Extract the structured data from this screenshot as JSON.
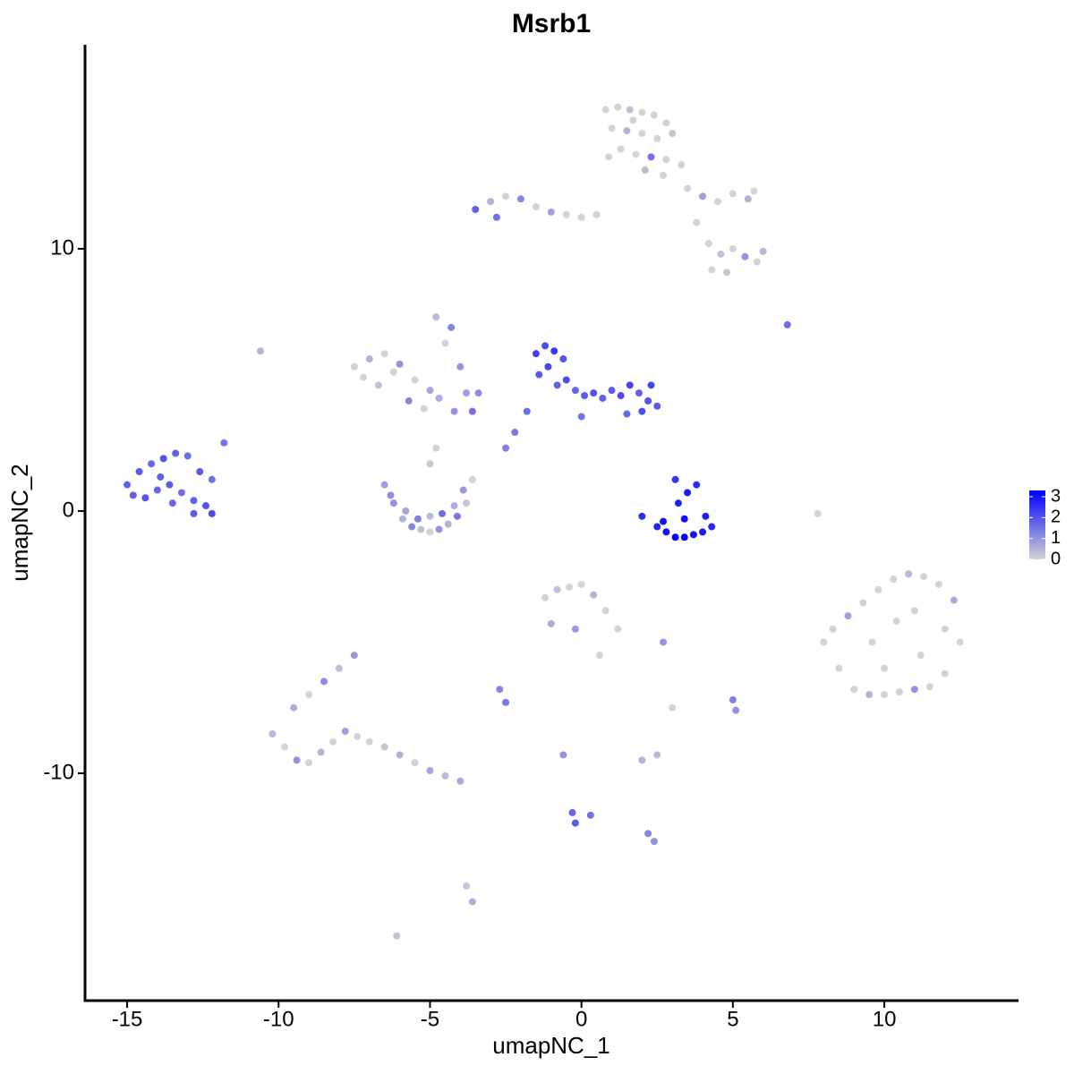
{
  "chart_data": {
    "type": "scatter",
    "title": "Msrb1",
    "xlabel": "umapNC_1",
    "ylabel": "umapNC_2",
    "xlim": [
      -16.39,
      14.43
    ],
    "ylim": [
      -18.67,
      17.78
    ],
    "xticks": [
      -15,
      -10,
      -5,
      0,
      5,
      10
    ],
    "yticks": [
      -10,
      0,
      10
    ],
    "color_scale": {
      "low": "#d3d3d3",
      "high": "#0000ff",
      "lim": [
        0,
        3.3
      ],
      "ticks": [
        0,
        1,
        2,
        3
      ]
    },
    "x": [
      -15,
      -14.6,
      -14.2,
      -13.8,
      -13.4,
      -13,
      -12.6,
      -12.2,
      -14.8,
      -14.4,
      -14,
      -13.6,
      -13.2,
      -12.8,
      -12.4,
      -13.5,
      -12.8,
      -12.2,
      -11.8,
      -13.9,
      0.8,
      1.2,
      1.6,
      2,
      2.4,
      2.8,
      1,
      1.5,
      2,
      2.5,
      3,
      1.3,
      1.8,
      2.3,
      2.8,
      3.3,
      0.9,
      2.1,
      2.7,
      1.7,
      3.5,
      4,
      4.5,
      5,
      5.5,
      5.7,
      4.2,
      4.6,
      5,
      5.4,
      5.8,
      6,
      4.3,
      4.8,
      3.8,
      -3.5,
      -3,
      -2.5,
      -2,
      -1.5,
      -1,
      -0.5,
      0,
      0.5,
      -2.8,
      -7.5,
      -7,
      -6.5,
      -6,
      -5.5,
      -5,
      -7.2,
      -6.7,
      -6.2,
      -5.7,
      -5.2,
      -4.7,
      -4.2,
      -4.8,
      -4.5,
      -4.3,
      -4,
      -3.8,
      -3.6,
      -3.4,
      -6.5,
      -6.2,
      -5.9,
      -5.6,
      -5.3,
      -5,
      -4.7,
      -4.4,
      -4.1,
      -3.8,
      -3.6,
      -6.3,
      -5.8,
      -5.4,
      -5,
      -4.6,
      -4.2,
      -3.9,
      -5,
      -4.8,
      -1.5,
      -1.2,
      -0.9,
      -0.6,
      -1.4,
      -1.1,
      -0.8,
      -0.5,
      -0.2,
      0.1,
      0.4,
      0.7,
      1,
      1.3,
      1.6,
      1.9,
      2.2,
      2.5,
      1.5,
      2,
      -1.8,
      -2.2,
      -2.5,
      0,
      2.3,
      2,
      2.5,
      2.8,
      3.1,
      3.4,
      3.7,
      4,
      4.3,
      3.2,
      3.5,
      3.8,
      3.1,
      3.4,
      2.7,
      4.1,
      8,
      8.5,
      9,
      9.5,
      10,
      10.5,
      11,
      11.5,
      12,
      12.5,
      8.3,
      8.8,
      9.3,
      9.8,
      10.3,
      10.8,
      11.3,
      11.8,
      12.3,
      9.6,
      10.4,
      11.2,
      12,
      10,
      11,
      -10.2,
      -9.8,
      -9.4,
      -9,
      -8.6,
      -8.2,
      -7.8,
      -7.4,
      -7,
      -9.5,
      -9,
      -8.5,
      -8,
      -7.5,
      -6.5,
      -6,
      -5.5,
      -5,
      -4.5,
      -4,
      -1.2,
      -0.8,
      -0.4,
      0,
      0.4,
      0.8,
      1.2,
      -1,
      -0.2,
      0.6,
      -2.7,
      -2.5,
      2.7,
      3,
      5,
      5.1,
      2,
      2.5,
      -0.6,
      -0.3,
      -0.2,
      0.3,
      2.2,
      2.4,
      -3.8,
      -3.6,
      -6.1,
      6.8,
      7.8,
      -10.6
    ],
    "values": [
      1,
      1.5,
      1.8,
      2,
      2.2,
      2.1,
      1.5,
      1.2,
      0.6,
      0.5,
      0.8,
      1,
      0.7,
      0.4,
      0.2,
      0.3,
      -0.1,
      -0.1,
      2.6,
      1.3,
      15.3,
      15.4,
      15.3,
      15.2,
      15.1,
      14.8,
      14.6,
      14.5,
      14.4,
      14.2,
      14.4,
      13.8,
      13.6,
      13.5,
      13.4,
      13.2,
      13.5,
      13,
      12.8,
      14.9,
      12.3,
      12,
      11.8,
      12.1,
      11.9,
      12.2,
      10.2,
      9.8,
      10,
      9.7,
      9.5,
      9.9,
      9.2,
      9.1,
      11,
      11.5,
      11.8,
      12,
      11.9,
      11.6,
      11.4,
      11.3,
      11.2,
      11.3,
      11.2,
      5.5,
      5.8,
      6,
      5.6,
      5,
      4.6,
      5.1,
      4.8,
      5.3,
      4.2,
      3.9,
      4.3,
      3.8,
      7.4,
      6.4,
      7,
      5.5,
      4.5,
      3.8,
      4.5,
      1,
      0.3,
      -0.3,
      -0.6,
      -0.7,
      -0.8,
      -0.7,
      -0.5,
      -0.2,
      0.3,
      1.2,
      0.6,
      0,
      -0.3,
      -0.2,
      -0.1,
      0.2,
      0.8,
      1.8,
      2.4,
      6,
      6.3,
      6.1,
      5.8,
      5.2,
      5.5,
      4.8,
      5,
      4.6,
      4.4,
      4.5,
      4.3,
      4.6,
      4.4,
      4.8,
      4.5,
      4.2,
      4,
      3.7,
      3.8,
      3.8,
      3,
      2.4,
      3.6,
      4.8,
      -0.2,
      -0.6,
      -0.8,
      -1,
      -1,
      -0.9,
      -0.8,
      -0.6,
      0.3,
      0.7,
      1,
      1.2,
      -0.3,
      -0.4,
      -0.2,
      -5,
      -6,
      -6.8,
      -7,
      -7,
      -6.9,
      -6.8,
      -6.7,
      -6.2,
      -5,
      -4.5,
      -4,
      -3.5,
      -3,
      -2.6,
      -2.4,
      -2.5,
      -2.8,
      -3.4,
      -5,
      -4.2,
      -5.5,
      -4.5,
      -6,
      -3.8,
      -8.5,
      -9,
      -9.5,
      -9.6,
      -9.2,
      -8.8,
      -8.4,
      -8.6,
      -8.8,
      -7.5,
      -7,
      -6.5,
      -6,
      -5.5,
      -9,
      -9.3,
      -9.6,
      -9.9,
      -10.1,
      -10.3,
      -3.3,
      -3,
      -2.9,
      -2.8,
      -3.2,
      -3.8,
      -4.5,
      -4.3,
      -4.5,
      -5.5,
      -6.8,
      -7.3,
      -5,
      -7.5,
      -7.2,
      -7.6,
      -9.5,
      -9.3,
      -9.3,
      -11.5,
      -11.9,
      -11.6,
      -12.3,
      -12.6,
      -14.3,
      -14.9,
      -16.2,
      7.1,
      -0.1,
      6.1
    ],
    "expression": [
      1.8,
      1.9,
      1.7,
      2,
      1.8,
      1.6,
      1.9,
      1.5,
      1.8,
      2,
      1.7,
      1.9,
      1.6,
      1.8,
      2,
      1.7,
      1.9,
      2.1,
      1.5,
      1.8,
      0,
      0,
      0.3,
      0,
      0,
      0,
      0,
      0.5,
      0,
      0,
      0.2,
      0,
      0,
      1.5,
      0,
      0,
      0,
      0.4,
      0,
      0,
      0,
      0.8,
      0,
      0,
      0.5,
      0,
      0,
      0.3,
      0,
      1,
      0,
      0.4,
      0,
      0.2,
      0,
      1.8,
      0.5,
      0,
      1.2,
      0,
      0.8,
      0,
      0,
      0,
      1.5,
      0,
      0.5,
      0,
      1,
      0,
      0.7,
      0,
      0.3,
      0,
      1.2,
      0,
      0.6,
      1,
      0.4,
      0,
      1.2,
      1,
      0.8,
      1.5,
      1.1,
      0.8,
      1,
      0.5,
      1.2,
      0.3,
      0,
      1,
      0.5,
      1.4,
      0.2,
      0,
      1.1,
      0.7,
      1.3,
      0.4,
      1.6,
      0.6,
      0.9,
      0.2,
      0,
      2.3,
      2.1,
      2.4,
      2,
      1.9,
      2.2,
      1.8,
      2.1,
      1.7,
      1.9,
      2,
      1.8,
      1.9,
      2.1,
      2.2,
      1.8,
      2,
      1.9,
      1.7,
      2.1,
      1.6,
      1.4,
      1.3,
      1.5,
      2.2,
      2.6,
      2.8,
      3,
      3.2,
      3.3,
      3,
      2.9,
      2.7,
      2.8,
      2.9,
      2.6,
      2.5,
      3.1,
      3,
      2.8,
      0,
      0,
      0,
      0.5,
      0,
      0,
      1,
      0,
      0,
      0,
      0,
      0.8,
      0,
      0,
      0,
      0.4,
      0,
      0,
      0.6,
      0,
      0,
      0,
      0,
      0,
      0,
      0.4,
      0,
      1,
      0,
      0.5,
      0,
      0.8,
      0,
      0,
      0.6,
      0,
      1.1,
      0.3,
      0.9,
      0.2,
      0.5,
      0,
      0.7,
      0.4,
      0.6,
      0,
      0.3,
      0,
      0,
      0.5,
      0,
      0,
      0.6,
      0.9,
      0,
      1.2,
      1.4,
      1,
      0,
      1.3,
      1,
      0.5,
      0.4,
      1,
      1.7,
      1.9,
      1.5,
      1.2,
      1,
      0.2,
      0.6,
      0.3,
      1.6,
      0,
      0.5
    ]
  }
}
